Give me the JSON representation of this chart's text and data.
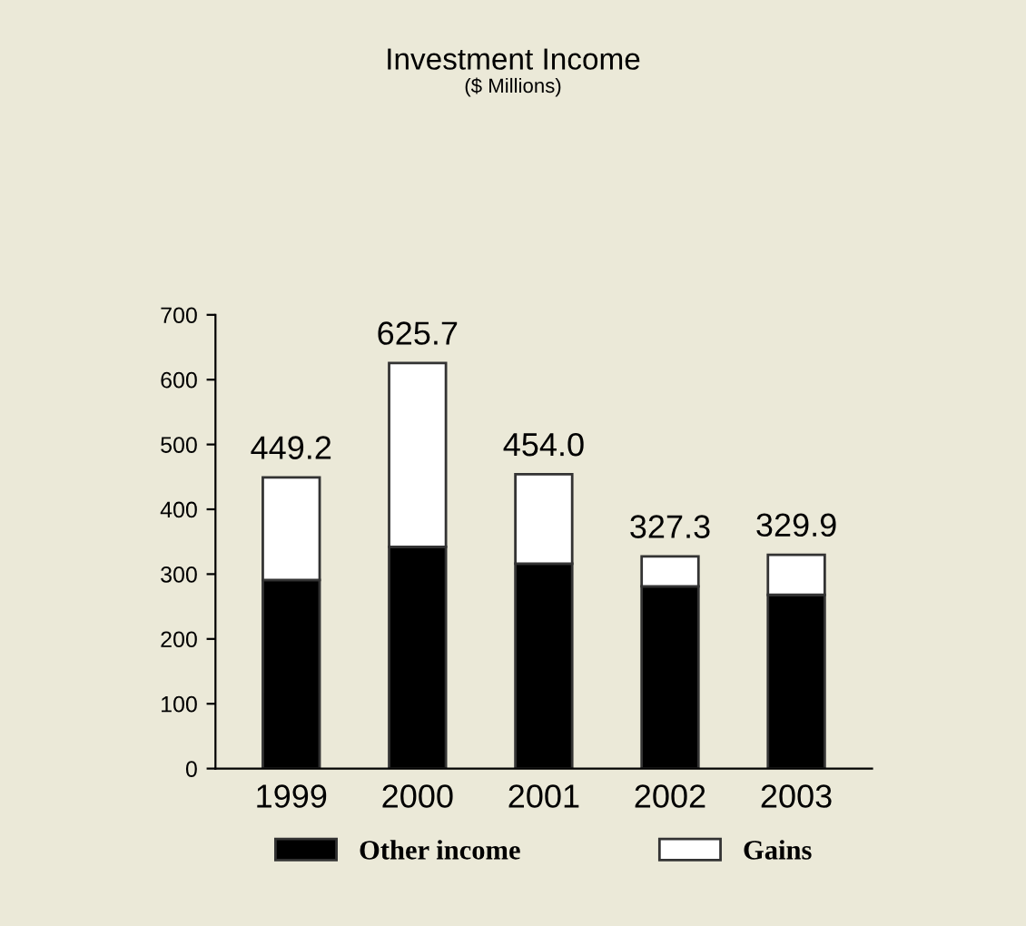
{
  "chart_data": {
    "type": "bar",
    "title": "Investment Income",
    "subtitle": "($ Millions)",
    "categories": [
      "1999",
      "2000",
      "2001",
      "2002",
      "2003"
    ],
    "series": [
      {
        "name": "Other income",
        "color": "#000000",
        "values": [
          291,
          342,
          316,
          281,
          268
        ]
      },
      {
        "name": "Gains",
        "color": "#ffffff",
        "values": [
          158.2,
          283.7,
          138.0,
          46.3,
          61.9
        ]
      }
    ],
    "stacked": true,
    "totals": [
      "449.2",
      "625.7",
      "454.0",
      "327.3",
      "329.9"
    ],
    "ylim": [
      0,
      700
    ],
    "yticks": [
      0,
      100,
      200,
      300,
      400,
      500,
      600,
      700
    ],
    "grid": false,
    "legend": "bottom"
  }
}
